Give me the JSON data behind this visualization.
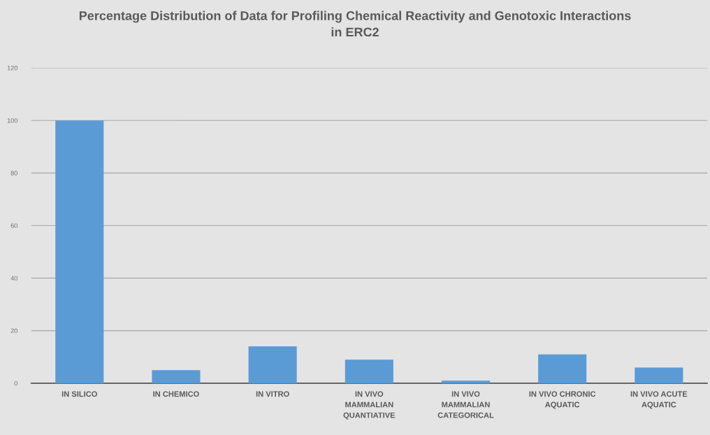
{
  "chart_data": {
    "type": "bar",
    "title": "Percentage Distribution of Data for Profiling Chemical Reactivity and Genotoxic Interactions in ERC2",
    "categories": [
      "IN SILICO",
      "IN CHEMICO",
      "IN VITRO",
      "IN VIVO MAMMALIAN QUANTIATIVE",
      "IN VIVO MAMMALIAN CATEGORICAL",
      "IN VIVO CHRONIC AQUATIC",
      "IN VIVO ACUTE AQUATIC"
    ],
    "values": [
      100,
      5,
      14,
      9,
      1,
      11,
      6
    ],
    "color": "#5b9bd5",
    "ylim": [
      0,
      120
    ],
    "yticks": [
      0,
      20,
      40,
      60,
      80,
      100,
      120
    ],
    "grid": "y",
    "legend": false
  }
}
